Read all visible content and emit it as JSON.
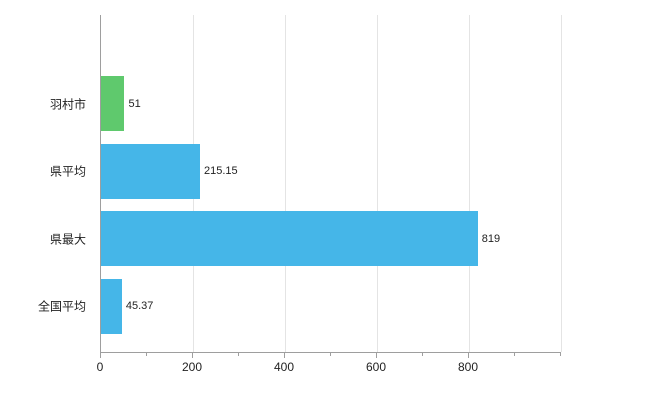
{
  "chart_data": {
    "type": "bar",
    "orientation": "horizontal",
    "title": "",
    "xlabel": "",
    "ylabel": "",
    "categories": [
      "羽村市",
      "県平均",
      "県最大",
      "全国平均"
    ],
    "values": [
      51,
      215.15,
      819,
      45.37
    ],
    "value_labels": [
      "51",
      "215.15",
      "819",
      "45.37"
    ],
    "bar_colors": [
      "#5fc96d",
      "#45b6e8",
      "#45b6e8",
      "#45b6e8"
    ],
    "xlim": [
      0,
      1000
    ],
    "xticks": [
      0,
      200,
      400,
      600,
      800
    ],
    "minor_tick_step": 100,
    "grid": true,
    "legend": "none",
    "background_color": "#ffffff",
    "gridline_color": "#e4e4e4",
    "axis_color": "#9e9e9e",
    "text_color": "#222222"
  }
}
